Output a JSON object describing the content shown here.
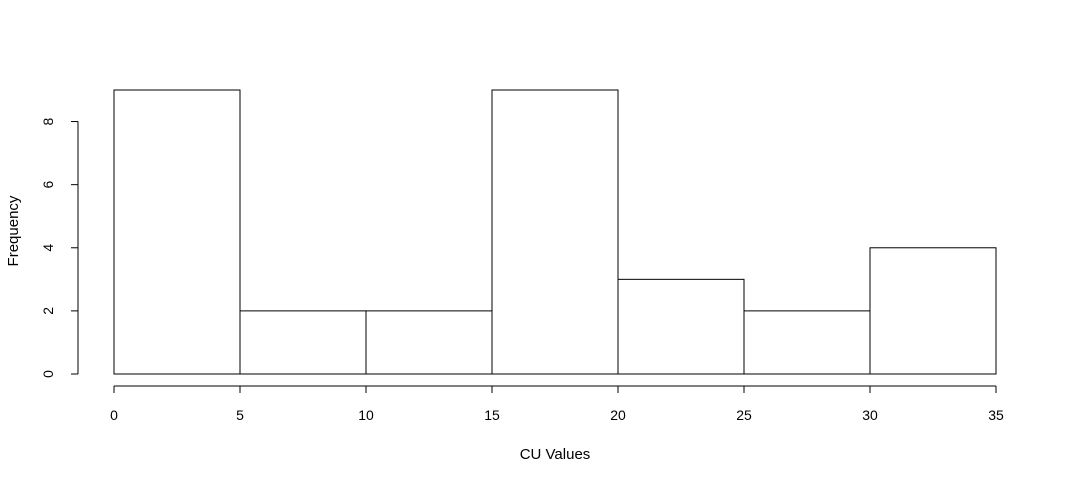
{
  "chart_data": {
    "type": "bar",
    "histogram": true,
    "title": "",
    "xlabel": "CU Values",
    "ylabel": "Frequency",
    "bins": [
      {
        "from": 0,
        "to": 5,
        "count": 9
      },
      {
        "from": 5,
        "to": 10,
        "count": 2
      },
      {
        "from": 10,
        "to": 15,
        "count": 2
      },
      {
        "from": 15,
        "to": 20,
        "count": 9
      },
      {
        "from": 20,
        "to": 25,
        "count": 3
      },
      {
        "from": 25,
        "to": 30,
        "count": 2
      },
      {
        "from": 30,
        "to": 35,
        "count": 4
      }
    ],
    "xlim": [
      0,
      35
    ],
    "ylim": [
      0,
      9
    ],
    "x_ticks": [
      0,
      5,
      10,
      15,
      20,
      25,
      30,
      35
    ],
    "y_ticks": [
      0,
      2,
      4,
      6,
      8
    ],
    "x_tick_labels": [
      "0",
      "5",
      "10",
      "15",
      "20",
      "25",
      "30",
      "35"
    ],
    "y_tick_labels": [
      "0",
      "2",
      "4",
      "6",
      "8"
    ],
    "grid": false,
    "colors": {
      "bar_fill": "#ffffff",
      "bar_stroke": "#000000"
    }
  }
}
